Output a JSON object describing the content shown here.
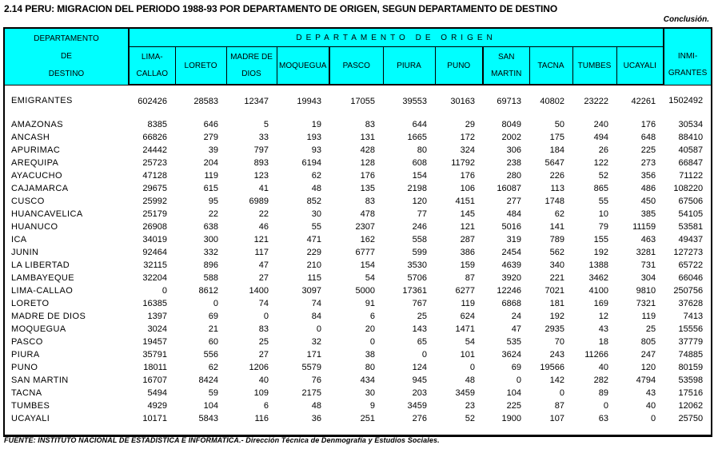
{
  "page": {
    "title": "2.14  PERU: MIGRACION DEL PERIODO 1988-93 POR DEPARTAMENTO DE ORIGEN, SEGUN DEPARTAMENTO DE DESTINO",
    "conclusion_note": "Conclusión.",
    "source_note": "FUENTE: INSTITUTO NACIONAL DE ESTADISTICA E INFORMATICA.- Dirección Técnica de Denmografía y Estudios Sociales."
  },
  "colors": {
    "header_bg": "#00ffff",
    "border": "#000000"
  },
  "table": {
    "destination_header_lines": [
      "DEPARTAMENTO",
      "DE",
      "DESTINO"
    ],
    "origin_group_header": "DEPARTAMENTO DE ORIGEN",
    "origin_columns": [
      {
        "lines": [
          "LIMA-",
          "CALLAO"
        ]
      },
      {
        "lines": [
          "LORETO"
        ]
      },
      {
        "lines": [
          "MADRE DE",
          "DIOS"
        ]
      },
      {
        "lines": [
          "MOQUEGUA"
        ]
      },
      {
        "lines": [
          "PASCO"
        ]
      },
      {
        "lines": [
          "PIURA"
        ]
      },
      {
        "lines": [
          "PUNO"
        ]
      },
      {
        "lines": [
          "SAN",
          "MARTIN"
        ]
      },
      {
        "lines": [
          "TACNA"
        ]
      },
      {
        "lines": [
          "TUMBES"
        ]
      },
      {
        "lines": [
          "UCAYALI"
        ]
      }
    ],
    "immigrants_header_lines": [
      "INMI-",
      "GRANTES"
    ],
    "emigrants_row": {
      "label": "EMIGRANTES",
      "values": [
        "602426",
        "28583",
        "12347",
        "19943",
        "17055",
        "39553",
        "30163",
        "69713",
        "40802",
        "23222",
        "42261",
        "1502492"
      ]
    },
    "rows": [
      {
        "label": "AMAZONAS",
        "values": [
          "8385",
          "646",
          "5",
          "19",
          "83",
          "644",
          "29",
          "8049",
          "50",
          "240",
          "176",
          "30534"
        ]
      },
      {
        "label": "ANCASH",
        "values": [
          "66826",
          "279",
          "33",
          "193",
          "131",
          "1665",
          "172",
          "2002",
          "175",
          "494",
          "648",
          "88410"
        ]
      },
      {
        "label": "APURIMAC",
        "values": [
          "24442",
          "39",
          "797",
          "93",
          "428",
          "80",
          "324",
          "306",
          "184",
          "26",
          "225",
          "40587"
        ]
      },
      {
        "label": "AREQUIPA",
        "values": [
          "25723",
          "204",
          "893",
          "6194",
          "128",
          "608",
          "11792",
          "238",
          "5647",
          "122",
          "273",
          "66847"
        ]
      },
      {
        "label": "AYACUCHO",
        "values": [
          "47128",
          "119",
          "123",
          "62",
          "176",
          "154",
          "176",
          "280",
          "226",
          "52",
          "356",
          "71122"
        ]
      },
      {
        "label": "CAJAMARCA",
        "values": [
          "29675",
          "615",
          "41",
          "48",
          "135",
          "2198",
          "106",
          "16087",
          "113",
          "865",
          "486",
          "108220"
        ]
      },
      {
        "label": "CUSCO",
        "values": [
          "25992",
          "95",
          "6989",
          "852",
          "83",
          "120",
          "4151",
          "277",
          "1748",
          "55",
          "450",
          "67506"
        ]
      },
      {
        "label": "HUANCAVELICA",
        "values": [
          "25179",
          "22",
          "22",
          "30",
          "478",
          "77",
          "145",
          "484",
          "62",
          "10",
          "385",
          "54105"
        ]
      },
      {
        "label": "HUANUCO",
        "values": [
          "26908",
          "638",
          "46",
          "55",
          "2307",
          "246",
          "121",
          "5016",
          "141",
          "79",
          "11159",
          "53581"
        ]
      },
      {
        "label": "ICA",
        "values": [
          "34019",
          "300",
          "121",
          "471",
          "162",
          "558",
          "287",
          "319",
          "789",
          "155",
          "463",
          "49437"
        ]
      },
      {
        "label": "JUNIN",
        "values": [
          "92464",
          "332",
          "117",
          "229",
          "6777",
          "599",
          "386",
          "2454",
          "562",
          "192",
          "3281",
          "127273"
        ]
      },
      {
        "label": "LA LIBERTAD",
        "values": [
          "32115",
          "896",
          "47",
          "210",
          "154",
          "3530",
          "159",
          "4639",
          "340",
          "1388",
          "731",
          "65722"
        ]
      },
      {
        "label": "LAMBAYEQUE",
        "values": [
          "32204",
          "588",
          "27",
          "115",
          "54",
          "5706",
          "87",
          "3920",
          "221",
          "3462",
          "304",
          "66046"
        ]
      },
      {
        "label": "LIMA-CALLAO",
        "values": [
          "0",
          "8612",
          "1400",
          "3097",
          "5000",
          "17361",
          "6277",
          "12246",
          "7021",
          "4100",
          "9810",
          "250756"
        ]
      },
      {
        "label": "LORETO",
        "values": [
          "16385",
          "0",
          "74",
          "74",
          "91",
          "767",
          "119",
          "6868",
          "181",
          "169",
          "7321",
          "37628"
        ]
      },
      {
        "label": "MADRE DE DIOS",
        "values": [
          "1397",
          "69",
          "0",
          "84",
          "6",
          "25",
          "624",
          "24",
          "192",
          "12",
          "119",
          "7413"
        ]
      },
      {
        "label": "MOQUEGUA",
        "values": [
          "3024",
          "21",
          "83",
          "0",
          "20",
          "143",
          "1471",
          "47",
          "2935",
          "43",
          "25",
          "15556"
        ]
      },
      {
        "label": "PASCO",
        "values": [
          "19457",
          "60",
          "25",
          "32",
          "0",
          "65",
          "54",
          "535",
          "70",
          "18",
          "805",
          "37779"
        ]
      },
      {
        "label": "PIURA",
        "values": [
          "35791",
          "556",
          "27",
          "171",
          "38",
          "0",
          "101",
          "3624",
          "243",
          "11266",
          "247",
          "74885"
        ]
      },
      {
        "label": "PUNO",
        "values": [
          "18011",
          "62",
          "1206",
          "5579",
          "80",
          "124",
          "0",
          "69",
          "19566",
          "40",
          "120",
          "80159"
        ]
      },
      {
        "label": "SAN MARTIN",
        "values": [
          "16707",
          "8424",
          "40",
          "76",
          "434",
          "945",
          "48",
          "0",
          "142",
          "282",
          "4794",
          "53598"
        ]
      },
      {
        "label": "TACNA",
        "values": [
          "5494",
          "59",
          "109",
          "2175",
          "30",
          "203",
          "3459",
          "104",
          "0",
          "89",
          "43",
          "17516"
        ]
      },
      {
        "label": "TUMBES",
        "values": [
          "4929",
          "104",
          "6",
          "48",
          "9",
          "3459",
          "23",
          "225",
          "87",
          "0",
          "40",
          "12062"
        ]
      },
      {
        "label": "UCAYALI",
        "values": [
          "10171",
          "5843",
          "116",
          "36",
          "251",
          "276",
          "52",
          "1900",
          "107",
          "63",
          "0",
          "25750"
        ]
      }
    ]
  }
}
